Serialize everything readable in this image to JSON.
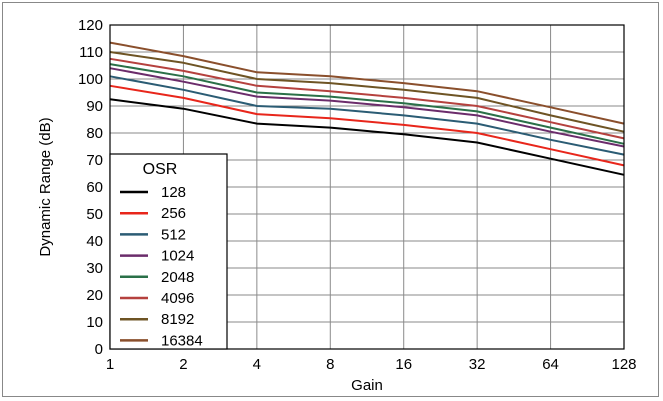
{
  "chart_data": {
    "type": "line",
    "xlabel": "Gain",
    "ylabel": "Dynamic Range (dB)",
    "x_scale": "log2",
    "x": [
      1,
      2,
      4,
      8,
      16,
      32,
      64,
      128
    ],
    "x_tick_labels": [
      "1",
      "2",
      "4",
      "8",
      "16",
      "32",
      "64",
      "128"
    ],
    "ylim": [
      0,
      120
    ],
    "y_ticks": [
      0,
      10,
      20,
      30,
      40,
      50,
      60,
      70,
      80,
      90,
      100,
      110,
      120
    ],
    "grid": true,
    "legend": {
      "title": "OSR",
      "placement": "bottom-left"
    },
    "series": [
      {
        "name": "128",
        "color": "#000000",
        "values": [
          92.5,
          89.0,
          83.5,
          82.0,
          79.5,
          76.5,
          70.5,
          64.5
        ]
      },
      {
        "name": "256",
        "color": "#e8261b",
        "values": [
          97.5,
          93.0,
          87.0,
          85.5,
          83.0,
          80.0,
          74.0,
          68.0
        ]
      },
      {
        "name": "512",
        "color": "#2b5c74",
        "values": [
          101.0,
          96.0,
          90.0,
          89.0,
          86.5,
          83.5,
          77.5,
          72.0
        ]
      },
      {
        "name": "1024",
        "color": "#6b2c6b",
        "values": [
          104.0,
          99.0,
          93.5,
          92.0,
          89.5,
          86.5,
          80.5,
          75.0
        ]
      },
      {
        "name": "2048",
        "color": "#2a7048",
        "values": [
          105.5,
          101.0,
          95.0,
          93.5,
          91.0,
          88.0,
          82.0,
          76.0
        ]
      },
      {
        "name": "4096",
        "color": "#b5413e",
        "values": [
          107.5,
          103.0,
          97.5,
          95.5,
          93.0,
          90.0,
          84.0,
          78.0
        ]
      },
      {
        "name": "8192",
        "color": "#6e5424",
        "values": [
          110.0,
          106.0,
          100.0,
          98.5,
          96.0,
          93.0,
          86.5,
          80.5
        ]
      },
      {
        "name": "16384",
        "color": "#8a4f2c",
        "values": [
          113.5,
          108.5,
          102.5,
          101.0,
          98.5,
          95.5,
          89.5,
          83.5
        ]
      }
    ]
  }
}
